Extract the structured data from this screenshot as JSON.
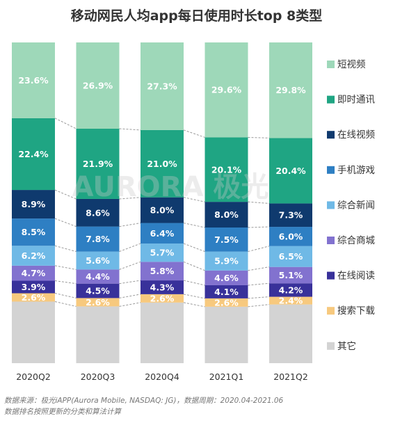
{
  "title": "移动网民人均app每日使用时长top 8类型",
  "watermark": "AURORA 极光",
  "chart_data": {
    "type": "bar",
    "stacked": true,
    "percent": true,
    "categories": [
      "2020Q2",
      "2020Q3",
      "2020Q4",
      "2021Q1",
      "2021Q2"
    ],
    "series": [
      {
        "name": "短视频",
        "color": "#9ed8b9",
        "values": [
          23.6,
          26.9,
          27.3,
          29.6,
          29.8
        ]
      },
      {
        "name": "即时通讯",
        "color": "#1fa583",
        "values": [
          22.4,
          21.9,
          21.0,
          20.1,
          20.4
        ]
      },
      {
        "name": "在线视频",
        "color": "#0f3a6e",
        "values": [
          8.9,
          8.6,
          8.0,
          8.0,
          7.3
        ]
      },
      {
        "name": "手机游戏",
        "color": "#2e7fc3",
        "values": [
          8.5,
          7.8,
          6.4,
          7.5,
          6.0
        ]
      },
      {
        "name": "综合新闻",
        "color": "#6fb9e6",
        "values": [
          6.2,
          5.6,
          5.7,
          5.9,
          6.5
        ]
      },
      {
        "name": "综合商城",
        "color": "#8272cf",
        "values": [
          4.7,
          4.4,
          5.8,
          4.6,
          5.1
        ]
      },
      {
        "name": "在线阅读",
        "color": "#38319a",
        "values": [
          3.9,
          4.5,
          4.3,
          4.1,
          4.2
        ]
      },
      {
        "name": "搜索下载",
        "color": "#f7c97e",
        "values": [
          2.6,
          2.6,
          2.6,
          2.6,
          2.4
        ]
      },
      {
        "name": "其它",
        "color": "#d3d3d3",
        "values": [
          19.2,
          17.7,
          18.9,
          17.6,
          18.3
        ]
      }
    ],
    "legend_position": "right",
    "grid": false
  },
  "footnote": [
    "数据来源：极光iAPP(Aurora Mobile, NASDAQ: JG)，数据周期：2020.04-2021.06",
    "数据排名按照更新的分类和算法计算"
  ]
}
